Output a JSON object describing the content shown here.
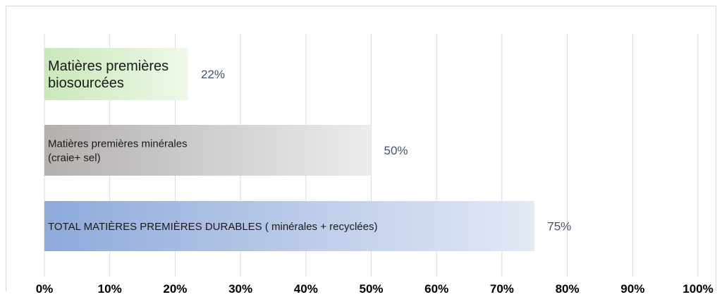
{
  "chart_data": {
    "type": "bar",
    "orientation": "horizontal",
    "title": "",
    "xlabel": "",
    "ylabel": "",
    "xlim": [
      0,
      100
    ],
    "grid": true,
    "legend": "none",
    "x_ticks": [
      "0%",
      "10%",
      "20%",
      "30%",
      "40%",
      "50%",
      "60%",
      "70%",
      "80%",
      "90%",
      "100%"
    ],
    "categories": [
      [
        "Matières premières",
        "biosourcées"
      ],
      [
        "Matières premières minérales",
        "(craie+ sel)"
      ],
      [
        "TOTAL MATIÈRES PREMIÈRES DURABLES ( minérales + recyclées)"
      ]
    ],
    "values": [
      22,
      50,
      75
    ],
    "data_labels": [
      "22%",
      "50%",
      "75%"
    ],
    "colors": [
      {
        "from": "#c9e8b9",
        "to": "#eef8e9"
      },
      {
        "from": "#b3b0ae",
        "to": "#ececec"
      },
      {
        "from": "#8eaadb",
        "to": "#e3e9f5"
      }
    ],
    "label_color": "#44546a",
    "grid_color": "#d9d9e0"
  }
}
